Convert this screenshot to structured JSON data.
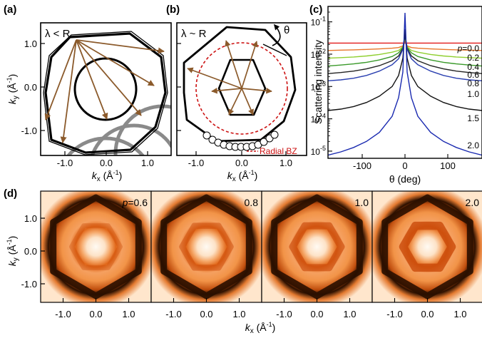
{
  "panels": {
    "a": {
      "label": "(a)",
      "annotation": "λ < R",
      "xlabel": "k",
      "xlabel_sub": "x",
      "xlabel_unit": " (Å",
      "xlabel_exp": "-1",
      "xlabel_close": ")",
      "ylabel": "k",
      "ylabel_sub": "y",
      "ylabel_unit": " (Å",
      "ylabel_exp": "-1",
      "ylabel_close": ")",
      "xticks": [
        "-1.0",
        "0.0",
        "1.0"
      ],
      "yticks": [
        "1.0",
        "0.0",
        "-1.0"
      ]
    },
    "b": {
      "label": "(b)",
      "annotation": "λ ~ R",
      "theta_label": "θ",
      "legend_text": "Radial BZ",
      "xlabel": "k",
      "xlabel_sub": "x",
      "xlabel_unit": " (Å",
      "xlabel_exp": "-1",
      "xlabel_close": ")",
      "xticks": [
        "-1.0",
        "0.0",
        "1.0"
      ]
    },
    "c": {
      "label": "(c)",
      "ylabel": "Scattering intensity",
      "xlabel": "θ (deg)",
      "xticks": [
        "-100",
        "0",
        "100"
      ],
      "yticks": [
        {
          "base": "10",
          "exp": "-1"
        },
        {
          "base": "10",
          "exp": "-2"
        },
        {
          "base": "10",
          "exp": "-3"
        },
        {
          "base": "10",
          "exp": "-4"
        },
        {
          "base": "10",
          "exp": "-5"
        }
      ],
      "p_prefix": "p",
      "series_labels": [
        "=0.0",
        "0.2",
        "0.4",
        "0.6",
        "0.8",
        "1.0",
        "1.5",
        "2.0"
      ]
    },
    "d": {
      "label": "(d)",
      "ylabel": "k",
      "ylabel_sub": "y",
      "ylabel_unit": " (Å",
      "ylabel_exp": "-1",
      "ylabel_close": ")",
      "xlabel": "k",
      "xlabel_sub": "x",
      "xlabel_unit": " (Å",
      "xlabel_exp": "-1",
      "xlabel_close": ")",
      "xticks": [
        "-1.0",
        "0.0",
        "1.0"
      ],
      "yticks": [
        "1.0",
        "0.0",
        "-1.0"
      ],
      "p_prefix": "p",
      "maps": [
        "=0.6",
        "0.8",
        "1.0",
        "2.0"
      ]
    }
  },
  "colors": {
    "arrow": "#8b5a2b",
    "gray_circle": "#8a8a8a",
    "radial_bz": "#cc1111",
    "legend_text": "#cc1111",
    "map_dark": "#2a0f00",
    "map_orange": "#f07a20",
    "map_light": "#fde3c8"
  },
  "chart_data": {
    "type": "line",
    "title": "",
    "xlabel": "θ (deg)",
    "ylabel": "Scattering intensity",
    "xlim": [
      -180,
      180
    ],
    "ylim": [
      6e-06,
      0.3
    ],
    "yscale": "log",
    "grid": false,
    "x": [
      -180,
      -150,
      -120,
      -90,
      -60,
      -30,
      -15,
      -5,
      0,
      5,
      15,
      30,
      60,
      90,
      120,
      150,
      180
    ],
    "series": [
      {
        "name": "p=0.0",
        "color": "#e11a1a",
        "values": [
          0.022,
          0.022,
          0.022,
          0.022,
          0.022,
          0.022,
          0.022,
          0.022,
          0.022,
          0.022,
          0.022,
          0.022,
          0.022,
          0.022,
          0.022,
          0.022,
          0.022
        ]
      },
      {
        "name": "0.2",
        "color": "#e8762a",
        "values": [
          0.013,
          0.0133,
          0.0136,
          0.014,
          0.0145,
          0.0153,
          0.016,
          0.018,
          0.026,
          0.018,
          0.016,
          0.0153,
          0.0145,
          0.014,
          0.0136,
          0.0133,
          0.013
        ]
      },
      {
        "name": "0.4",
        "color": "#8fcf2f",
        "values": [
          0.0075,
          0.0078,
          0.0082,
          0.0088,
          0.0098,
          0.0115,
          0.013,
          0.017,
          0.03,
          0.017,
          0.013,
          0.0115,
          0.0098,
          0.0088,
          0.0082,
          0.0078,
          0.0075
        ]
      },
      {
        "name": "0.6",
        "color": "#3a9a2a",
        "values": [
          0.0043,
          0.0046,
          0.005,
          0.0056,
          0.0066,
          0.0085,
          0.011,
          0.016,
          0.035,
          0.016,
          0.011,
          0.0085,
          0.0066,
          0.0056,
          0.005,
          0.0046,
          0.0043
        ]
      },
      {
        "name": "0.8",
        "color": "#222222",
        "values": [
          0.0025,
          0.0027,
          0.003,
          0.0035,
          0.0044,
          0.0063,
          0.0088,
          0.015,
          0.04,
          0.015,
          0.0088,
          0.0063,
          0.0044,
          0.0035,
          0.003,
          0.0027,
          0.0025
        ]
      },
      {
        "name": "1.0",
        "color": "#2a3fb0",
        "values": [
          0.0015,
          0.0016,
          0.0018,
          0.0022,
          0.003,
          0.0047,
          0.0072,
          0.014,
          0.045,
          0.014,
          0.0072,
          0.0047,
          0.003,
          0.0022,
          0.0018,
          0.0016,
          0.0015
        ]
      },
      {
        "name": "1.5",
        "color": "#111111",
        "values": [
          0.00018,
          0.0002,
          0.00024,
          0.00032,
          0.0005,
          0.001,
          0.0022,
          0.0075,
          0.06,
          0.0075,
          0.0022,
          0.001,
          0.0005,
          0.00032,
          0.00024,
          0.0002,
          0.00018
        ]
      },
      {
        "name": "2.0",
        "color": "#1a2ab0",
        "values": [
          7.5e-06,
          9.5e-06,
          1.3e-05,
          2e-05,
          3.8e-05,
          0.00012,
          0.00045,
          0.0028,
          0.19,
          0.0028,
          0.00045,
          0.00012,
          3.8e-05,
          2e-05,
          1.3e-05,
          9.5e-06,
          7.5e-06
        ]
      }
    ]
  }
}
